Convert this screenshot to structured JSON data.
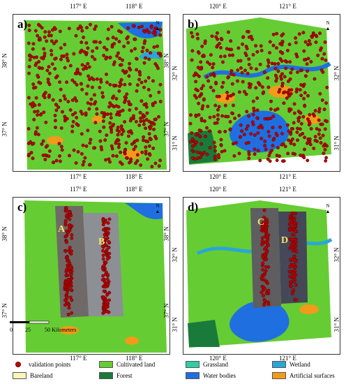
{
  "panels": [
    {
      "label": "a)",
      "top_ticks": [
        "117° E",
        "118° E"
      ],
      "bottom_ticks": [
        "117° E",
        "118° E"
      ],
      "left_ticks": [
        "38° N",
        "37° N"
      ],
      "right_ticks": [
        "38° N",
        "37° N"
      ]
    },
    {
      "label": "b)",
      "top_ticks": [
        "120° E",
        "121° E"
      ],
      "bottom_ticks": [
        "120° E",
        "121° E"
      ],
      "left_ticks": [
        "32° N",
        "31° N"
      ],
      "right_ticks": [
        "32° N",
        "31° N"
      ]
    },
    {
      "label": "c)",
      "top_ticks": [
        "117° E",
        "118° E"
      ],
      "bottom_ticks": [
        "117° E",
        "118° E"
      ],
      "left_ticks": [
        "38° N",
        "37° N"
      ],
      "right_ticks": [
        "38° N",
        "37° N"
      ],
      "flightlines": [
        "A",
        "B"
      ]
    },
    {
      "label": "d)",
      "top_ticks": [
        "120° E",
        "121° E"
      ],
      "bottom_ticks": [
        "120° E",
        "121° E"
      ],
      "left_ticks": [
        "32° N",
        "31° N"
      ],
      "right_ticks": [
        "32° N",
        "31° N"
      ],
      "flightlines": [
        "C",
        "D"
      ]
    }
  ],
  "north_label": "N",
  "scale_bar": {
    "ticks": [
      "0",
      "25",
      "50"
    ],
    "unit": "Kilometers"
  },
  "legend": [
    {
      "label": "validation points",
      "color": "#c00000",
      "kind": "dot"
    },
    {
      "label": "Cultivated land",
      "color": "#66cc33",
      "kind": "swatch"
    },
    {
      "label": "Grassland",
      "color": "#33ccaa",
      "kind": "swatch"
    },
    {
      "label": "Wetland",
      "color": "#2aa7d6",
      "kind": "swatch"
    },
    {
      "label": "Bareland",
      "color": "#fbf5b8",
      "kind": "swatch"
    },
    {
      "label": "Forest",
      "color": "#1a7a3a",
      "kind": "swatch"
    },
    {
      "label": "Water bodies",
      "color": "#1f6fe0",
      "kind": "swatch"
    },
    {
      "label": "Artificial surfaces",
      "color": "#f29a1a",
      "kind": "swatch"
    }
  ]
}
